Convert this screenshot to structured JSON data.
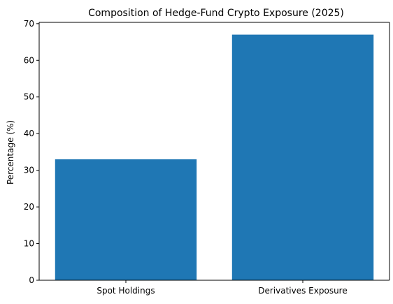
{
  "chart_data": {
    "type": "bar",
    "title": "Composition of Hedge-Fund Crypto Exposure (2025)",
    "xlabel": "",
    "ylabel": "Percentage (%)",
    "categories": [
      "Spot Holdings",
      "Derivatives Exposure"
    ],
    "values": [
      33,
      67
    ],
    "ylim": [
      0,
      70.35
    ],
    "yticks": [
      0,
      10,
      20,
      30,
      40,
      50,
      60,
      70
    ],
    "grid": false,
    "bar_color": "#1f77b4"
  }
}
